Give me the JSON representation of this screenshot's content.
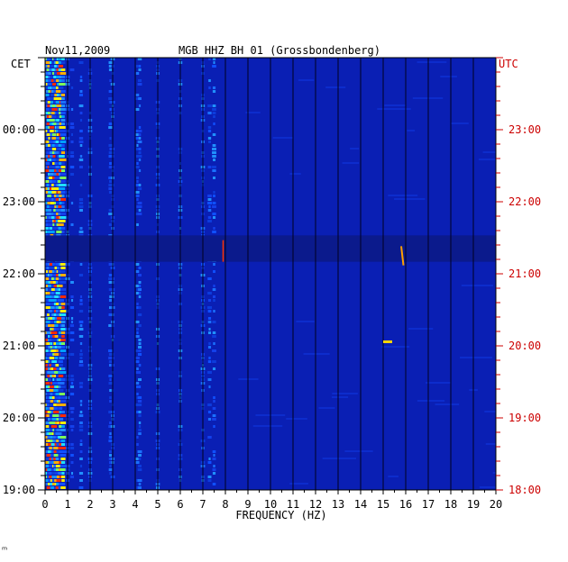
{
  "chart_data": {
    "type": "heatmap",
    "date": "Nov11,2009",
    "station": "MGB HHZ BH 01 (Grossbondenberg)",
    "left_timezone": "CET",
    "right_timezone": "UTC",
    "xlabel": "FREQUENCY (HZ)",
    "xlim": [
      0,
      20
    ],
    "x_ticks": [
      "0",
      "1",
      "2",
      "3",
      "4",
      "5",
      "6",
      "7",
      "8",
      "9",
      "10",
      "11",
      "12",
      "13",
      "14",
      "15",
      "16",
      "17",
      "18",
      "19",
      "20"
    ],
    "y_ticks_left": [
      "19:00",
      "20:00",
      "21:00",
      "22:00",
      "23:00",
      "00:00"
    ],
    "y_ticks_right": [
      "18:00",
      "19:00",
      "20:00",
      "21:00",
      "22:00",
      "23:00"
    ],
    "gap_band_cet": [
      "22:10",
      "22:32"
    ],
    "corner_mark": "ᵐ",
    "colors": {
      "background": "#0a1fb4",
      "dark_band": "#0b1a8c",
      "grid": "#000020",
      "right_axis": "#cc0000",
      "signal": "#ffd400"
    }
  }
}
